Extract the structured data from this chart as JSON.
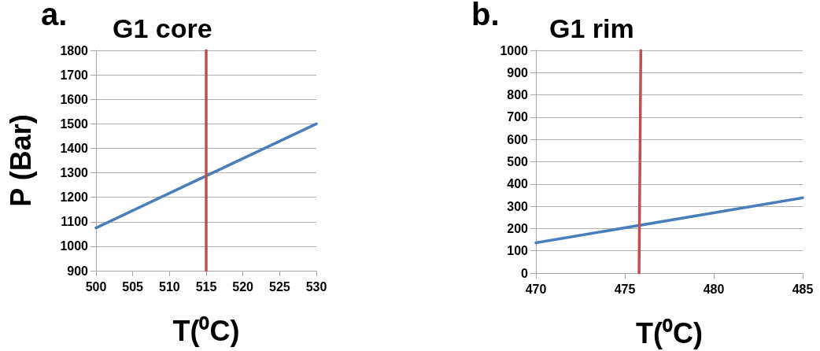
{
  "chart_data": [
    {
      "type": "line",
      "title": "G1 core",
      "xlabel": "T(⁰C)",
      "ylabel": "P (Bar)",
      "annotations": [
        "a."
      ],
      "series": [
        {
          "color": "#4a7ebb",
          "x": [
            500,
            530
          ],
          "values": [
            1075,
            1500
          ]
        },
        {
          "color": "#c0504d",
          "x": [
            515,
            515
          ],
          "values": [
            900,
            1800
          ]
        }
      ],
      "xlim": [
        500,
        530
      ],
      "xticks": [
        500,
        505,
        510,
        515,
        520,
        525,
        530
      ],
      "ylim": [
        900,
        1800
      ],
      "yticks": [
        900,
        1000,
        1100,
        1200,
        1300,
        1400,
        1500,
        1600,
        1700,
        1800
      ],
      "grid": "y",
      "marker": "none",
      "line_style": "solid"
    },
    {
      "type": "line",
      "title": "G1 rim",
      "xlabel": "T(⁰C)",
      "annotations": [
        "b."
      ],
      "series": [
        {
          "color": "#4a7ebb",
          "x": [
            470,
            485
          ],
          "values": [
            136,
            338
          ]
        },
        {
          "color": "#c0504d",
          "x": [
            475.8,
            475.9
          ],
          "values": [
            0,
            1000
          ]
        }
      ],
      "xlim": [
        470,
        485
      ],
      "xticks": [
        470,
        475,
        480,
        485
      ],
      "ylim": [
        0,
        1000
      ],
      "yticks": [
        0,
        100,
        200,
        300,
        400,
        500,
        600,
        700,
        800,
        900,
        1000
      ],
      "grid": "y",
      "marker": "none",
      "line_style": "solid"
    }
  ]
}
